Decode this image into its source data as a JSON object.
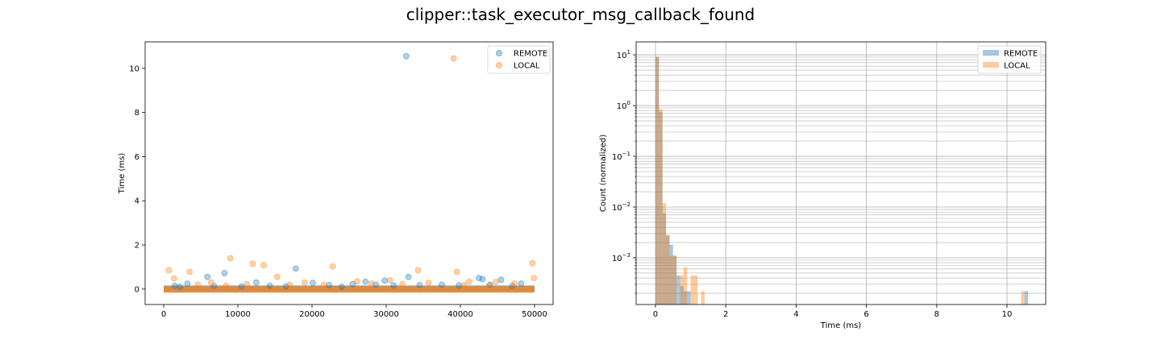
{
  "suptitle": "clipper::task_executor_msg_callback_found",
  "colors": {
    "remote": "#1f77b4",
    "local": "#ff7f0e"
  },
  "chart_data": [
    {
      "type": "scatter",
      "xlabel": "",
      "ylabel": "Time (ms)",
      "xlim": [
        -2500,
        52500
      ],
      "ylim": [
        -0.7,
        11.2
      ],
      "xticks": [
        0,
        10000,
        20000,
        30000,
        40000,
        50000
      ],
      "xtick_labels": [
        "0",
        "10000",
        "20000",
        "30000",
        "40000",
        "50000"
      ],
      "yticks": [
        0,
        2,
        4,
        6,
        8,
        10
      ],
      "ytick_labels": [
        "0",
        "2",
        "4",
        "6",
        "8",
        "10"
      ],
      "grid": false,
      "legend": "top-right",
      "series": [
        {
          "name": "REMOTE",
          "color": "#1f77b4",
          "points": [
            [
              32700,
              10.55
            ],
            [
              17800,
              0.93
            ],
            [
              8200,
              0.72
            ],
            [
              5900,
              0.55
            ],
            [
              33000,
              0.55
            ],
            [
              43000,
              0.45
            ],
            [
              45500,
              0.42
            ],
            [
              42500,
              0.5
            ],
            [
              29800,
              0.38
            ],
            [
              27200,
              0.33
            ],
            [
              12500,
              0.3
            ],
            [
              3200,
              0.25
            ],
            [
              20100,
              0.28
            ],
            [
              25500,
              0.22
            ],
            [
              37500,
              0.2
            ],
            [
              48200,
              0.25
            ],
            [
              1500,
              0.15
            ],
            [
              22300,
              0.18
            ],
            [
              14300,
              0.15
            ],
            [
              34500,
              0.18
            ],
            [
              39800,
              0.16
            ],
            [
              47000,
              0.14
            ],
            [
              10500,
              0.12
            ],
            [
              6800,
              0.14
            ],
            [
              28600,
              0.2
            ],
            [
              31000,
              0.16
            ],
            [
              44000,
              0.2
            ],
            [
              2200,
              0.1
            ],
            [
              16500,
              0.12
            ],
            [
              24000,
              0.1
            ]
          ]
        },
        {
          "name": "LOCAL",
          "color": "#ff7f0e",
          "points": [
            [
              39100,
              10.45
            ],
            [
              9000,
              1.4
            ],
            [
              12000,
              1.15
            ],
            [
              13500,
              1.08
            ],
            [
              22800,
              1.03
            ],
            [
              49700,
              1.17
            ],
            [
              700,
              0.85
            ],
            [
              3500,
              0.78
            ],
            [
              34300,
              0.85
            ],
            [
              39500,
              0.78
            ],
            [
              15300,
              0.55
            ],
            [
              49900,
              0.5
            ],
            [
              1400,
              0.48
            ],
            [
              26100,
              0.35
            ],
            [
              41200,
              0.33
            ],
            [
              44800,
              0.32
            ],
            [
              30500,
              0.4
            ],
            [
              19000,
              0.3
            ],
            [
              6400,
              0.3
            ],
            [
              35700,
              0.28
            ],
            [
              47300,
              0.25
            ],
            [
              11200,
              0.22
            ],
            [
              21600,
              0.2
            ],
            [
              28000,
              0.25
            ],
            [
              4600,
              0.2
            ],
            [
              40500,
              0.18
            ],
            [
              17000,
              0.2
            ],
            [
              32200,
              0.22
            ],
            [
              43900,
              0.15
            ],
            [
              8400,
              0.15
            ]
          ]
        }
      ],
      "baseline_band": {
        "x_range": [
          0,
          50000
        ],
        "y": 0.0
      }
    },
    {
      "type": "histogram",
      "xlabel": "Time (ms)",
      "ylabel": "Count (normalized)",
      "yscale": "log",
      "xlim": [
        -0.55,
        11.1
      ],
      "ylim": [
        0.00012,
        18
      ],
      "xticks": [
        0,
        2,
        4,
        6,
        8,
        10
      ],
      "xtick_labels": [
        "0",
        "2",
        "4",
        "6",
        "8",
        "10"
      ],
      "yticks_major": [
        0.001,
        0.01,
        0.1,
        1,
        10
      ],
      "ytick_labels": [
        {
          "base": "10",
          "exp": "−3"
        },
        {
          "base": "10",
          "exp": "−2"
        },
        {
          "base": "10",
          "exp": "−1"
        },
        {
          "base": "10",
          "exp": "0"
        },
        {
          "base": "10",
          "exp": "1"
        }
      ],
      "grid": true,
      "legend": "top-right",
      "bin_width": 0.1,
      "series": [
        {
          "name": "REMOTE",
          "color": "#1f77b4",
          "bins": [
            [
              0.0,
              9.2
            ],
            [
              0.1,
              0.75
            ],
            [
              0.2,
              0.0075
            ],
            [
              0.3,
              0.0028
            ],
            [
              0.4,
              0.0018
            ],
            [
              0.5,
              0.0011
            ],
            [
              0.6,
              0.00045
            ],
            [
              0.7,
              0.00028
            ],
            [
              0.8,
              0.00022
            ],
            [
              0.9,
              0.00022
            ],
            [
              10.5,
              0.00022
            ]
          ]
        },
        {
          "name": "LOCAL",
          "color": "#ff7f0e",
          "bins": [
            [
              0.0,
              9.0
            ],
            [
              0.1,
              0.85
            ],
            [
              0.2,
              0.012
            ],
            [
              0.3,
              0.0028
            ],
            [
              0.4,
              0.0011
            ],
            [
              0.5,
              0.0011
            ],
            [
              0.7,
              0.00045
            ],
            [
              0.8,
              0.00065
            ],
            [
              1.0,
              0.00045
            ],
            [
              1.1,
              0.00045
            ],
            [
              1.3,
              0.00022
            ],
            [
              10.4,
              0.00022
            ]
          ]
        }
      ]
    }
  ]
}
